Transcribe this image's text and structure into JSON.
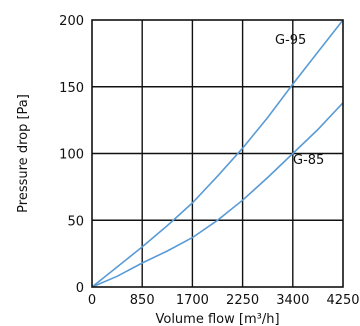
{
  "chart_data": {
    "type": "line",
    "title": "",
    "xlabel": "Volume flow [m³/h]",
    "ylabel": "Pressure drop [Pa]",
    "x_ticks": [
      0,
      850,
      1700,
      2250,
      3400,
      4250
    ],
    "y_ticks": [
      0,
      50,
      100,
      150,
      200
    ],
    "xlim": [
      0,
      4250
    ],
    "ylim": [
      0,
      200
    ],
    "grid": true,
    "line_color": "#5b9bd5",
    "series": [
      {
        "name": "G-95",
        "x": [
          0,
          425,
          850,
          1275,
          1700,
          2125,
          2550,
          2975,
          3400,
          3825,
          4250
        ],
        "y": [
          0,
          15,
          30,
          46,
          63,
          83,
          104,
          127,
          152,
          176,
          200
        ]
      },
      {
        "name": "G-85",
        "x": [
          0,
          425,
          850,
          1275,
          1700,
          2125,
          2550,
          2975,
          3400,
          3825,
          4250
        ],
        "y": [
          0,
          8,
          18,
          27,
          37,
          50,
          65,
          82,
          100,
          118,
          138
        ]
      }
    ]
  }
}
